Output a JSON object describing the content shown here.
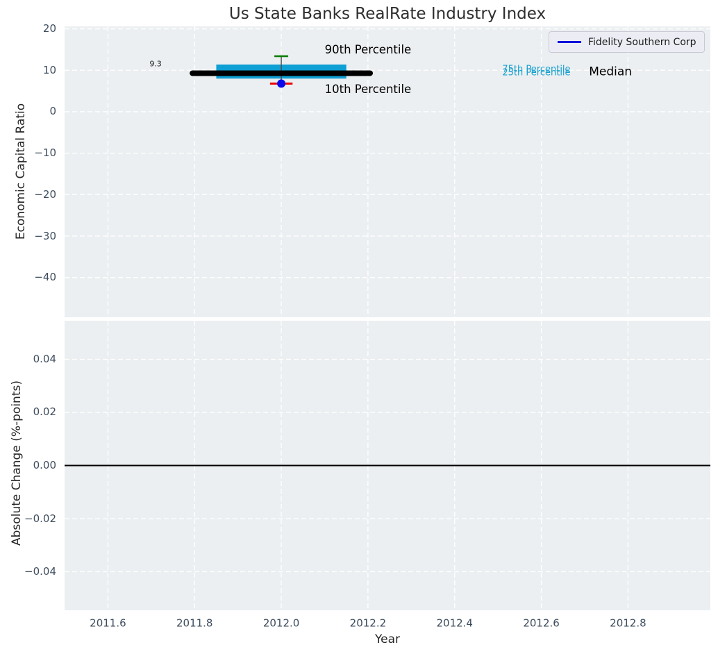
{
  "title": "Us State Banks RealRate Industry Index",
  "colors": {
    "plot_bg": "#eceff1",
    "grid": "#ffffff",
    "box_fill": "#0e9fd4",
    "median_line": "#000000",
    "whisker_line": "#4a4a4a",
    "p90_cap": "#0a8006",
    "p10_cap": "#ee0000",
    "company_point": "#0909ee",
    "tick_label": "#3e4d5e",
    "axis_label": "#262626",
    "title": "#2e2e2e",
    "legend_line": "#0000dd",
    "zero_line": "#000000"
  },
  "chart_data": [
    {
      "type": "box",
      "title": "Us State Banks RealRate Industry Index",
      "xlabel": "",
      "ylabel": "Economic Capital Ratio",
      "xlim": [
        2011.5,
        2012.99
      ],
      "ylim": [
        -49.6,
        20.6
      ],
      "xticks": {
        "values": [
          2011.6,
          2011.8,
          2012.0,
          2012.2,
          2012.4,
          2012.6,
          2012.8
        ],
        "labels": [
          "2011.6",
          "2011.8",
          "2012.0",
          "2012.2",
          "2012.4",
          "2012.6",
          "2012.8"
        ],
        "show_labels": false
      },
      "yticks": {
        "values": [
          20,
          10,
          0,
          -10,
          -20,
          -30,
          -40
        ],
        "labels": [
          "20",
          "10",
          "0",
          "−10",
          "−20",
          "−30",
          "−40"
        ]
      },
      "grid": {
        "on": true,
        "linestyle": "dashed",
        "color": "#ffffff"
      },
      "legend": {
        "label": "Fidelity Southern Corp",
        "position": "upper right"
      },
      "box": {
        "x": 2012.0,
        "median": 9.3,
        "q1": 8.0,
        "q3": 11.4,
        "p10": 6.8,
        "p90": 13.4,
        "box_x_range": [
          2011.85,
          2012.15
        ],
        "median_x_range": [
          2011.795,
          2012.205
        ],
        "p90_cap_halfwidth": 0.016,
        "p10_cap_halfwidth": 0.026
      },
      "company_point": {
        "name": "Fidelity Southern Corp",
        "x": 2012.0,
        "y": 6.8
      },
      "annotations": [
        {
          "text": "90th Percentile",
          "x": 2012.2,
          "y": 14.9,
          "anchor": "middle",
          "color": "#000000",
          "size": 16.5
        },
        {
          "text": "10th Percentile",
          "x": 2012.2,
          "y": 5.3,
          "anchor": "middle",
          "color": "#000000",
          "size": 16.5
        },
        {
          "text": "75th Percentile",
          "x": 2012.51,
          "y": 10.2,
          "anchor": "start",
          "color": "#17a0ce",
          "size": 13
        },
        {
          "text": "25th Percentile",
          "x": 2012.51,
          "y": 9.45,
          "anchor": "start",
          "color": "#17a0ce",
          "size": 13
        },
        {
          "text": "Median",
          "x": 2012.71,
          "y": 9.6,
          "anchor": "start",
          "color": "#000000",
          "size": 17
        },
        {
          "text": "9.3",
          "x": 2011.71,
          "y": 11.5,
          "anchor": "middle",
          "color": "#1a1a1a",
          "size": 11
        }
      ]
    },
    {
      "type": "line",
      "title": "",
      "xlabel": "Year",
      "ylabel": "Absolute Change (%-points)",
      "xlim": [
        2011.5,
        2012.99
      ],
      "ylim": [
        -0.0545,
        0.0545
      ],
      "xticks": {
        "values": [
          2011.6,
          2011.8,
          2012.0,
          2012.2,
          2012.4,
          2012.6,
          2012.8
        ],
        "labels": [
          "2011.6",
          "2011.8",
          "2012.0",
          "2012.2",
          "2012.4",
          "2012.6",
          "2012.8"
        ],
        "show_labels": true
      },
      "yticks": {
        "values": [
          0.04,
          0.02,
          0,
          -0.02,
          -0.04
        ],
        "labels": [
          "0.04",
          "0.02",
          "0.00",
          "−0.02",
          "−0.04"
        ]
      },
      "grid": {
        "on": true,
        "linestyle": "dashed",
        "color": "#ffffff"
      },
      "zero_line": {
        "y": 0,
        "color": "#000000",
        "width": 2
      },
      "series": []
    }
  ]
}
